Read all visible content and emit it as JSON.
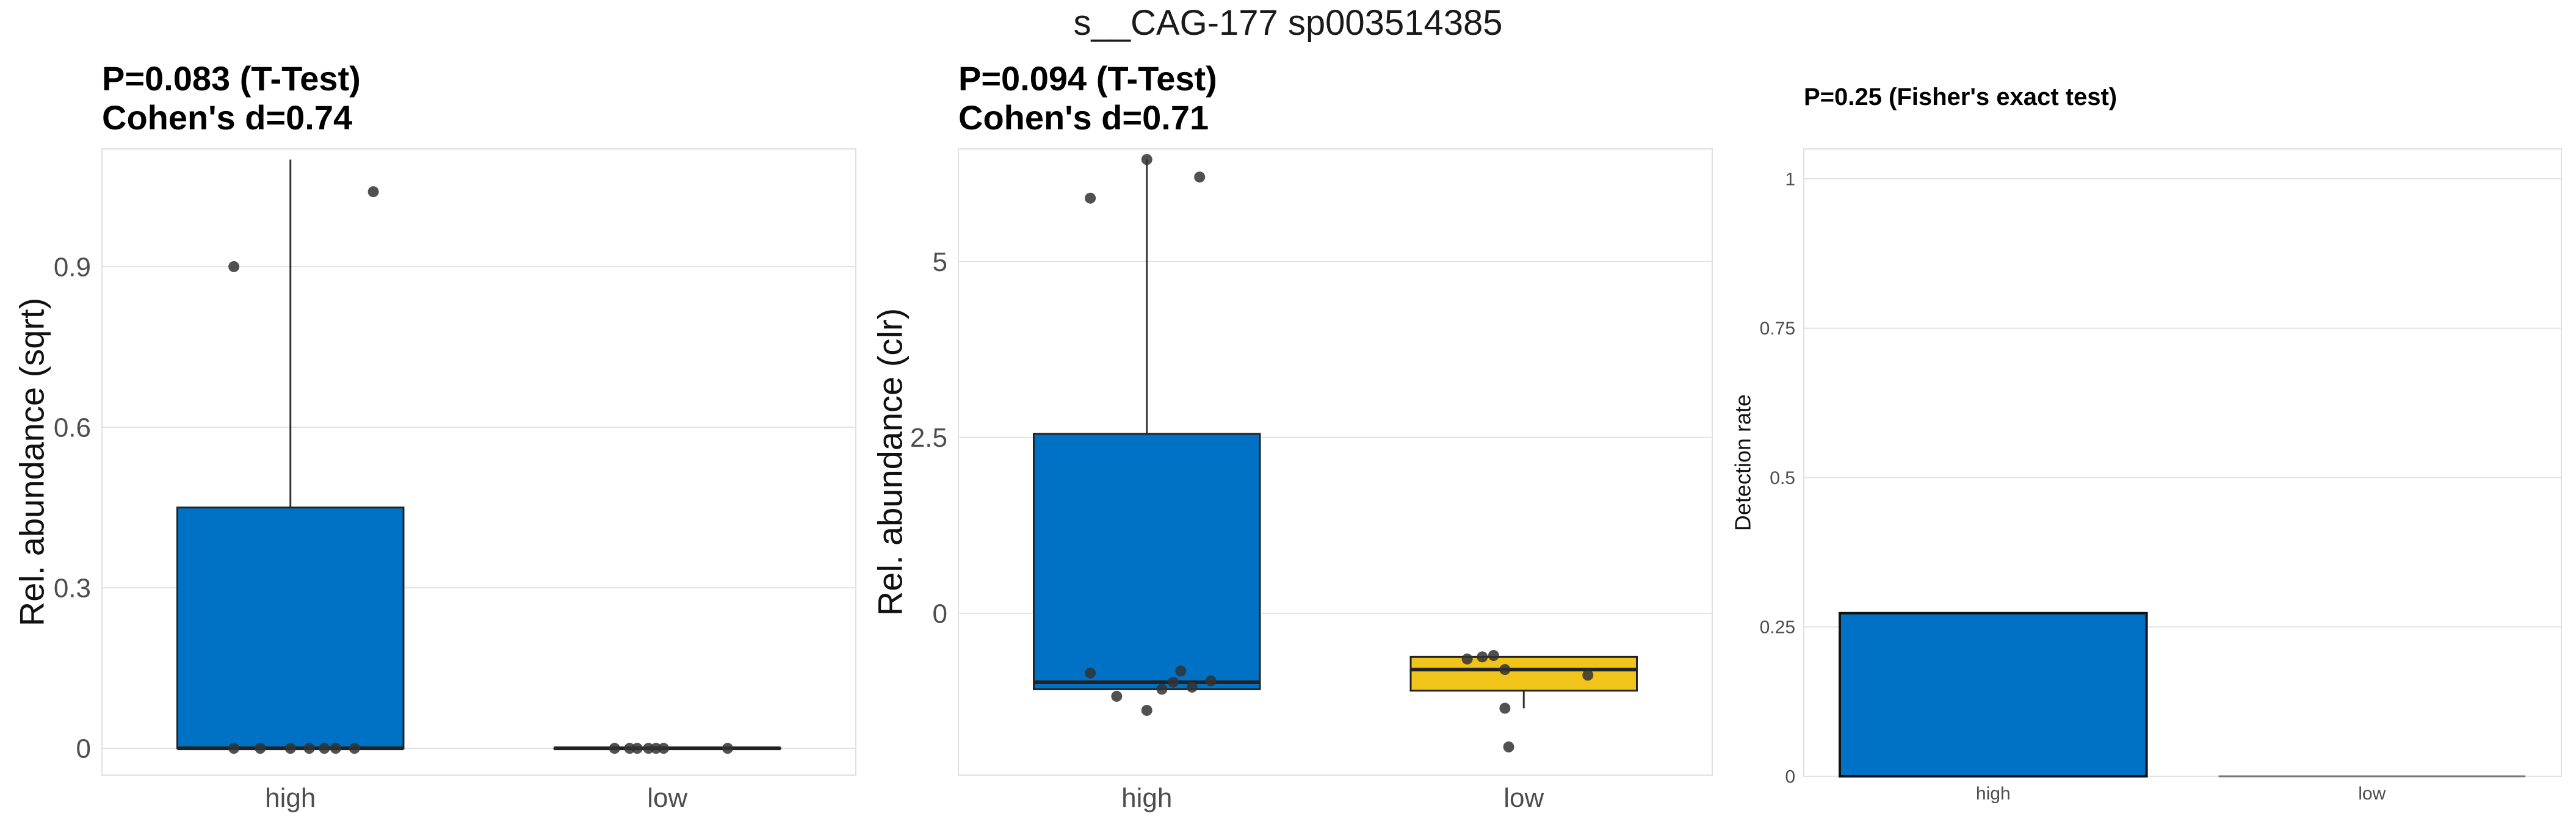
{
  "suptitle": "s__CAG-177 sp003514385",
  "chart_data": [
    {
      "type": "box",
      "title_line1": "P=0.083 (T-Test)",
      "title_line2": "Cohen's d=0.74",
      "ylabel": "Rel. abundance (sqrt)",
      "xlabel": "",
      "ylim": [
        -0.05,
        1.12
      ],
      "yticks": [
        0,
        0.3,
        0.6,
        0.9
      ],
      "ytick_labels": [
        "0",
        "0.3",
        "0.6",
        "0.9"
      ],
      "grid": true,
      "categories": [
        "high",
        "low"
      ],
      "colors": [
        "#0072c6",
        "#f0c419"
      ],
      "boxes": [
        {
          "category": "high",
          "q1": 0,
          "median": 0,
          "q3": 0.45,
          "whisker_low": 0,
          "whisker_high": 1.1
        },
        {
          "category": "low",
          "q1": 0,
          "median": 0,
          "q3": 0,
          "whisker_low": 0,
          "whisker_high": 0
        }
      ],
      "points": [
        {
          "category": "high",
          "jitter": -0.15,
          "y": 0.9
        },
        {
          "category": "high",
          "jitter": -0.15,
          "y": 0
        },
        {
          "category": "high",
          "jitter": -0.08,
          "y": 0
        },
        {
          "category": "high",
          "jitter": 0.0,
          "y": 0
        },
        {
          "category": "high",
          "jitter": 0.05,
          "y": 0
        },
        {
          "category": "high",
          "jitter": 0.09,
          "y": 0
        },
        {
          "category": "high",
          "jitter": 0.12,
          "y": 0
        },
        {
          "category": "high",
          "jitter": 0.17,
          "y": 0
        },
        {
          "category": "high",
          "jitter": 0.22,
          "y": 1.04
        },
        {
          "category": "low",
          "jitter": -0.14,
          "y": 0
        },
        {
          "category": "low",
          "jitter": -0.1,
          "y": 0
        },
        {
          "category": "low",
          "jitter": -0.08,
          "y": 0
        },
        {
          "category": "low",
          "jitter": -0.05,
          "y": 0
        },
        {
          "category": "low",
          "jitter": -0.03,
          "y": 0
        },
        {
          "category": "low",
          "jitter": -0.01,
          "y": 0
        },
        {
          "category": "low",
          "jitter": 0.16,
          "y": 0
        }
      ]
    },
    {
      "type": "box",
      "title_line1": "P=0.094 (T-Test)",
      "title_line2": "Cohen's d=0.71",
      "ylabel": "Rel. abundance (clr)",
      "xlabel": "",
      "ylim": [
        -2.3,
        6.6
      ],
      "yticks": [
        0,
        2.5,
        5
      ],
      "ytick_labels": [
        "0",
        "2.5",
        "5"
      ],
      "grid": true,
      "categories": [
        "high",
        "low"
      ],
      "colors": [
        "#0072c6",
        "#f0c419"
      ],
      "boxes": [
        {
          "category": "high",
          "q1": -1.08,
          "median": -0.98,
          "q3": 2.55,
          "whisker_low": -1.08,
          "whisker_high": 6.45
        },
        {
          "category": "low",
          "q1": -1.1,
          "median": -0.8,
          "q3": -0.62,
          "whisker_low": -1.35,
          "whisker_high": -0.62
        }
      ],
      "points": [
        {
          "category": "high",
          "jitter": -0.15,
          "y": 5.9
        },
        {
          "category": "high",
          "jitter": -0.15,
          "y": -0.85
        },
        {
          "category": "high",
          "jitter": -0.08,
          "y": -1.18
        },
        {
          "category": "high",
          "jitter": 0.0,
          "y": -1.38
        },
        {
          "category": "high",
          "jitter": 0.04,
          "y": -1.08
        },
        {
          "category": "high",
          "jitter": 0.07,
          "y": -0.98
        },
        {
          "category": "high",
          "jitter": 0.09,
          "y": -0.82
        },
        {
          "category": "high",
          "jitter": 0.12,
          "y": -1.05
        },
        {
          "category": "high",
          "jitter": 0.17,
          "y": -0.96
        },
        {
          "category": "high",
          "jitter": 0.0,
          "y": 6.45
        },
        {
          "category": "high",
          "jitter": 0.14,
          "y": 6.2
        },
        {
          "category": "low",
          "jitter": -0.15,
          "y": -0.65
        },
        {
          "category": "low",
          "jitter": -0.11,
          "y": -0.62
        },
        {
          "category": "low",
          "jitter": -0.08,
          "y": -0.6
        },
        {
          "category": "low",
          "jitter": -0.05,
          "y": -1.35
        },
        {
          "category": "low",
          "jitter": -0.05,
          "y": -0.8
        },
        {
          "category": "low",
          "jitter": 0.17,
          "y": -0.88
        },
        {
          "category": "low",
          "jitter": -0.04,
          "y": -1.9
        }
      ]
    },
    {
      "type": "bar",
      "title_line1": "P=0.25 (Fisher's exact test)",
      "ylabel": "Detection rate",
      "xlabel": "",
      "ylim": [
        0,
        1.05
      ],
      "yticks": [
        0,
        0.25,
        0.5,
        0.75,
        1
      ],
      "ytick_labels": [
        "0",
        "0.25",
        "0.5",
        "0.75",
        "1"
      ],
      "grid": true,
      "categories": [
        "high",
        "low"
      ],
      "values": [
        0.273,
        0
      ],
      "colors": [
        "#0072c6",
        "#f0c419"
      ]
    }
  ]
}
